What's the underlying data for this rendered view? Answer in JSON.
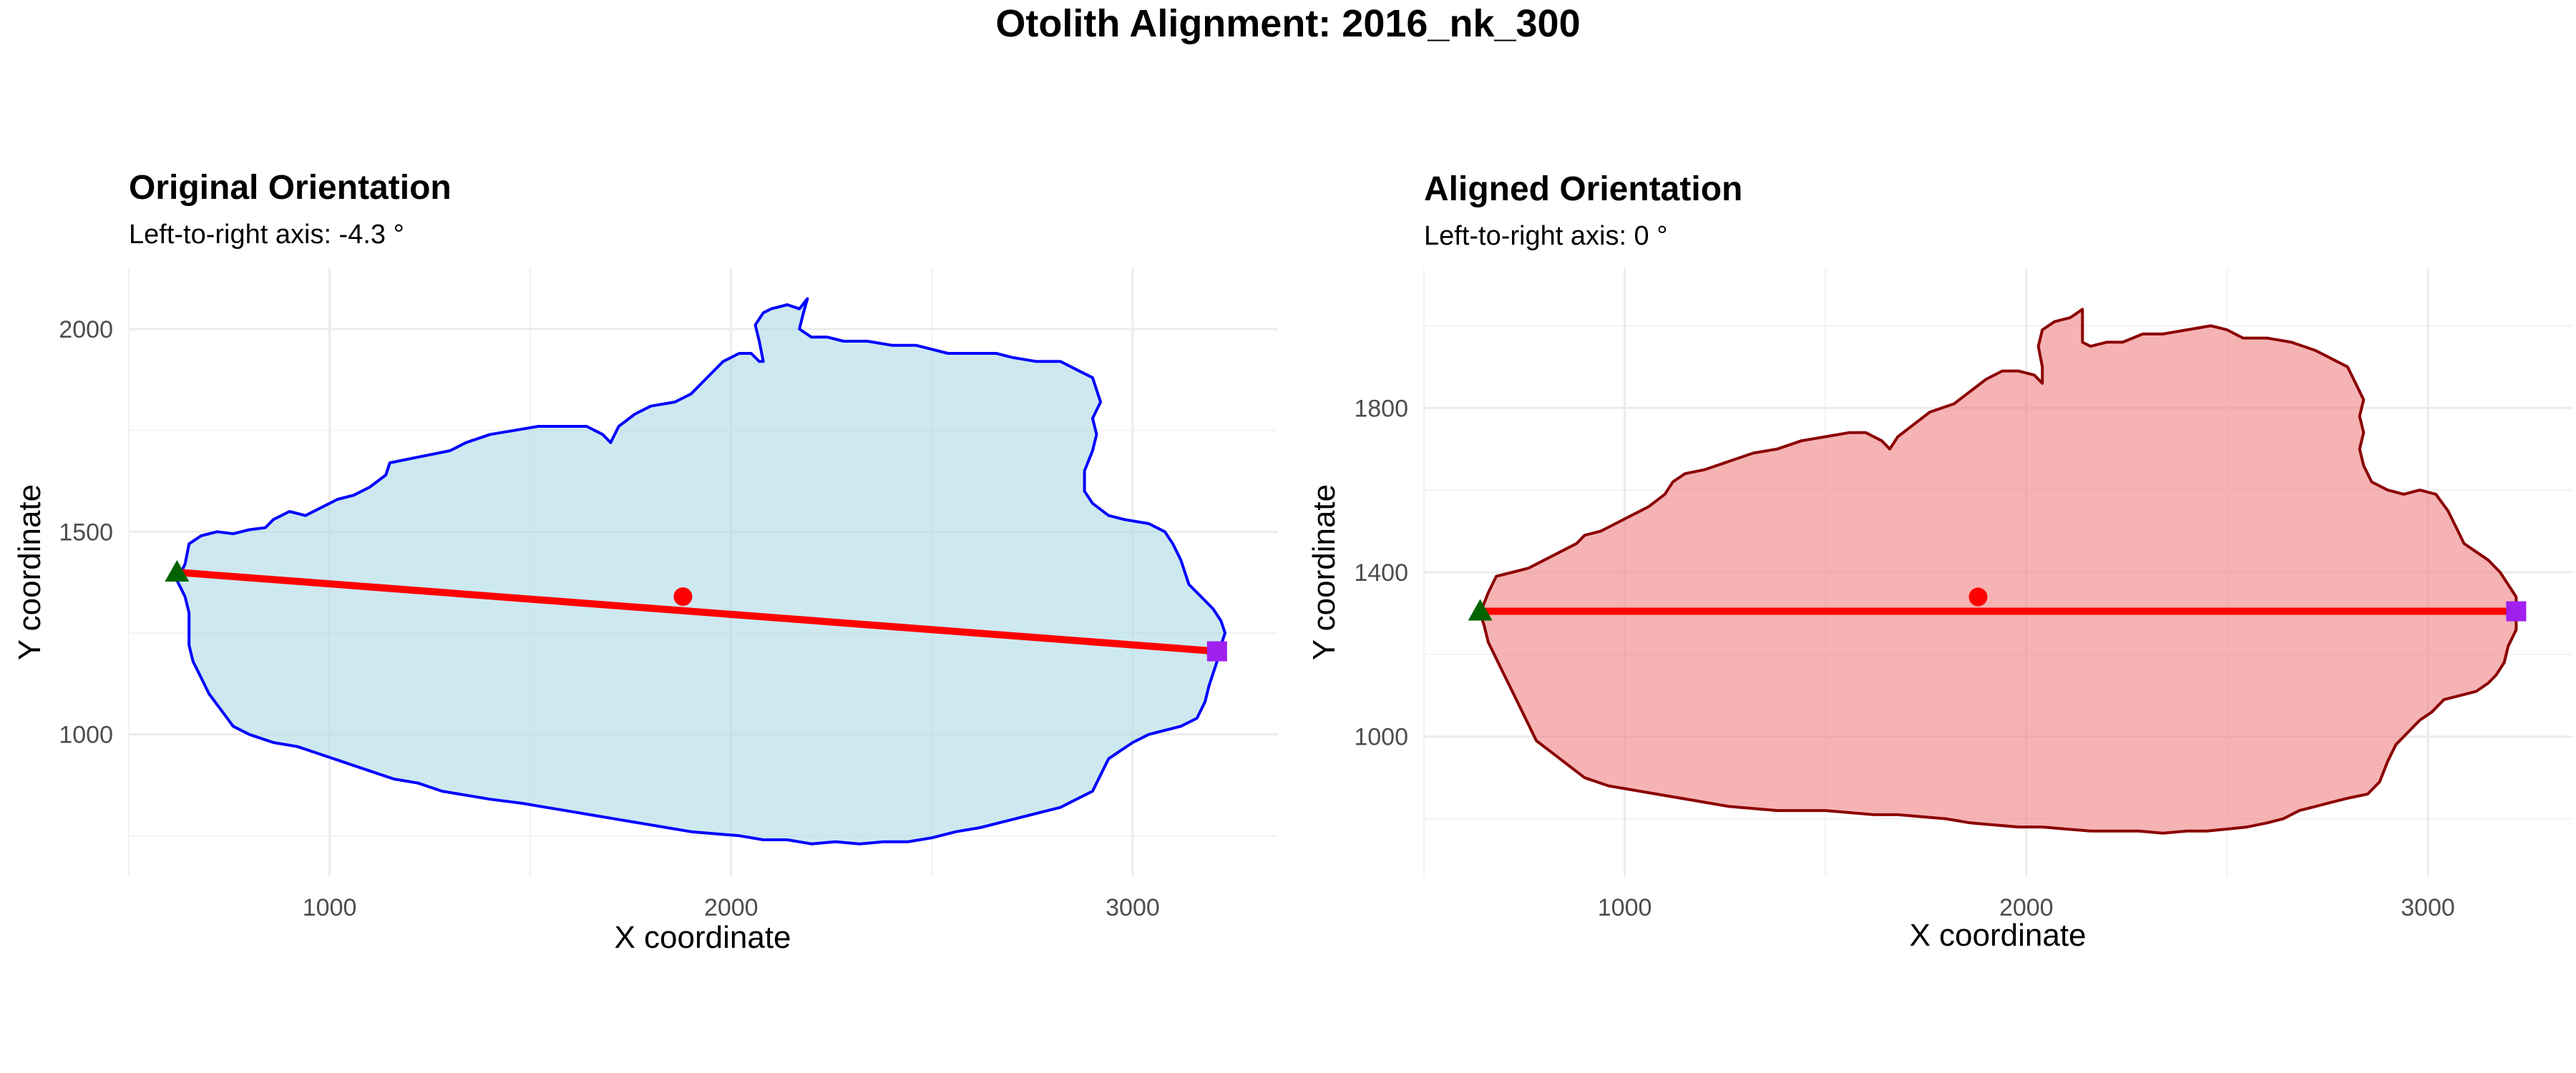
{
  "figure": {
    "title": "Otolith Alignment: 2016_nk_300"
  },
  "chart_data": [
    {
      "type": "scatter",
      "title": "Original Orientation",
      "subtitle": "Left-to-right axis: -4.3 °",
      "xlabel": "X coordinate",
      "ylabel": "Y coordinate",
      "xlim": [
        500,
        3360
      ],
      "ylim": [
        650,
        2150
      ],
      "x_ticks": [
        1000,
        2000,
        3000
      ],
      "y_ticks": [
        1000,
        1500,
        2000
      ],
      "x_tick_labels": [
        "1000",
        "2000",
        "3000"
      ],
      "y_tick_labels": [
        "1000",
        "1500",
        "2000"
      ],
      "grid": true,
      "colors": {
        "fill": "#add8e6",
        "outline": "#0000ff",
        "axis_line": "#ff0000",
        "centroid": "#ff0000",
        "left_point": "#006400",
        "right_point": "#a020f0"
      },
      "outline": [
        [
          620,
          1380
        ],
        [
          640,
          1420
        ],
        [
          650,
          1470
        ],
        [
          680,
          1490
        ],
        [
          720,
          1500
        ],
        [
          760,
          1495
        ],
        [
          800,
          1505
        ],
        [
          840,
          1510
        ],
        [
          860,
          1530
        ],
        [
          880,
          1540
        ],
        [
          900,
          1550
        ],
        [
          940,
          1540
        ],
        [
          980,
          1560
        ],
        [
          1020,
          1580
        ],
        [
          1060,
          1590
        ],
        [
          1100,
          1610
        ],
        [
          1140,
          1640
        ],
        [
          1150,
          1670
        ],
        [
          1200,
          1680
        ],
        [
          1250,
          1690
        ],
        [
          1300,
          1700
        ],
        [
          1340,
          1720
        ],
        [
          1400,
          1740
        ],
        [
          1460,
          1750
        ],
        [
          1520,
          1760
        ],
        [
          1580,
          1760
        ],
        [
          1640,
          1760
        ],
        [
          1680,
          1740
        ],
        [
          1700,
          1720
        ],
        [
          1720,
          1760
        ],
        [
          1760,
          1790
        ],
        [
          1800,
          1810
        ],
        [
          1860,
          1820
        ],
        [
          1900,
          1840
        ],
        [
          1940,
          1880
        ],
        [
          1980,
          1920
        ],
        [
          2020,
          1940
        ],
        [
          2050,
          1940
        ],
        [
          2070,
          1920
        ],
        [
          2080,
          1920
        ],
        [
          2070,
          1970
        ],
        [
          2060,
          2010
        ],
        [
          2080,
          2040
        ],
        [
          2100,
          2050
        ],
        [
          2140,
          2060
        ],
        [
          2170,
          2050
        ],
        [
          2190,
          2075
        ],
        [
          2180,
          2040
        ],
        [
          2170,
          2000
        ],
        [
          2200,
          1980
        ],
        [
          2240,
          1980
        ],
        [
          2280,
          1970
        ],
        [
          2340,
          1970
        ],
        [
          2400,
          1960
        ],
        [
          2460,
          1960
        ],
        [
          2500,
          1950
        ],
        [
          2540,
          1940
        ],
        [
          2600,
          1940
        ],
        [
          2660,
          1940
        ],
        [
          2700,
          1930
        ],
        [
          2760,
          1920
        ],
        [
          2820,
          1920
        ],
        [
          2860,
          1900
        ],
        [
          2900,
          1880
        ],
        [
          2910,
          1850
        ],
        [
          2920,
          1820
        ],
        [
          2900,
          1780
        ],
        [
          2910,
          1740
        ],
        [
          2900,
          1700
        ],
        [
          2880,
          1650
        ],
        [
          2880,
          1600
        ],
        [
          2900,
          1570
        ],
        [
          2940,
          1540
        ],
        [
          2980,
          1530
        ],
        [
          3040,
          1520
        ],
        [
          3080,
          1500
        ],
        [
          3100,
          1470
        ],
        [
          3120,
          1430
        ],
        [
          3130,
          1400
        ],
        [
          3140,
          1370
        ],
        [
          3170,
          1340
        ],
        [
          3200,
          1310
        ],
        [
          3220,
          1280
        ],
        [
          3230,
          1250
        ],
        [
          3220,
          1220
        ],
        [
          3210,
          1180
        ],
        [
          3200,
          1150
        ],
        [
          3190,
          1120
        ],
        [
          3180,
          1080
        ],
        [
          3160,
          1040
        ],
        [
          3120,
          1020
        ],
        [
          3080,
          1010
        ],
        [
          3040,
          1000
        ],
        [
          3000,
          980
        ],
        [
          2970,
          960
        ],
        [
          2940,
          940
        ],
        [
          2920,
          900
        ],
        [
          2900,
          860
        ],
        [
          2860,
          840
        ],
        [
          2820,
          820
        ],
        [
          2780,
          810
        ],
        [
          2740,
          800
        ],
        [
          2700,
          790
        ],
        [
          2660,
          780
        ],
        [
          2620,
          770
        ],
        [
          2560,
          760
        ],
        [
          2500,
          745
        ],
        [
          2440,
          735
        ],
        [
          2380,
          735
        ],
        [
          2320,
          730
        ],
        [
          2260,
          735
        ],
        [
          2200,
          730
        ],
        [
          2140,
          740
        ],
        [
          2080,
          740
        ],
        [
          2020,
          750
        ],
        [
          1960,
          755
        ],
        [
          1900,
          760
        ],
        [
          1840,
          770
        ],
        [
          1780,
          780
        ],
        [
          1720,
          790
        ],
        [
          1660,
          800
        ],
        [
          1600,
          810
        ],
        [
          1540,
          820
        ],
        [
          1480,
          830
        ],
        [
          1400,
          840
        ],
        [
          1340,
          850
        ],
        [
          1280,
          860
        ],
        [
          1220,
          880
        ],
        [
          1160,
          890
        ],
        [
          1100,
          910
        ],
        [
          1040,
          930
        ],
        [
          980,
          950
        ],
        [
          920,
          970
        ],
        [
          860,
          980
        ],
        [
          800,
          1000
        ],
        [
          760,
          1020
        ],
        [
          730,
          1060
        ],
        [
          700,
          1100
        ],
        [
          680,
          1140
        ],
        [
          660,
          1180
        ],
        [
          650,
          1220
        ],
        [
          650,
          1260
        ],
        [
          650,
          1300
        ],
        [
          640,
          1340
        ],
        [
          620,
          1380
        ]
      ],
      "axis_line": {
        "x": [
          620,
          3210
        ],
        "y": [
          1400,
          1205
        ]
      },
      "centroid": {
        "x": 1880,
        "y": 1340
      },
      "left_point": {
        "x": 620,
        "y": 1400
      },
      "right_point": {
        "x": 3210,
        "y": 1205
      }
    },
    {
      "type": "scatter",
      "title": "Aligned Orientation",
      "subtitle": "Left-to-right axis: 0 °",
      "xlabel": "X coordinate",
      "ylabel": "Y coordinate",
      "xlim": [
        500,
        3360
      ],
      "ylim": [
        660,
        2140
      ],
      "x_ticks": [
        1000,
        2000,
        3000
      ],
      "y_ticks": [
        1000,
        1400,
        1800
      ],
      "x_tick_labels": [
        "1000",
        "2000",
        "3000"
      ],
      "y_tick_labels": [
        "1000",
        "1400",
        "1800"
      ],
      "grid": true,
      "colors": {
        "fill": "#f08080",
        "outline": "#8b0000",
        "axis_line": "#ff0000",
        "centroid": "#ff0000",
        "left_point": "#006400",
        "right_point": "#a020f0"
      },
      "outline": [
        [
          640,
          1300
        ],
        [
          660,
          1350
        ],
        [
          680,
          1390
        ],
        [
          720,
          1400
        ],
        [
          760,
          1410
        ],
        [
          800,
          1430
        ],
        [
          840,
          1450
        ],
        [
          880,
          1470
        ],
        [
          900,
          1490
        ],
        [
          940,
          1500
        ],
        [
          980,
          1520
        ],
        [
          1020,
          1540
        ],
        [
          1060,
          1560
        ],
        [
          1100,
          1590
        ],
        [
          1120,
          1620
        ],
        [
          1150,
          1640
        ],
        [
          1200,
          1650
        ],
        [
          1260,
          1670
        ],
        [
          1320,
          1690
        ],
        [
          1380,
          1700
        ],
        [
          1440,
          1720
        ],
        [
          1500,
          1730
        ],
        [
          1560,
          1740
        ],
        [
          1600,
          1740
        ],
        [
          1640,
          1720
        ],
        [
          1660,
          1700
        ],
        [
          1680,
          1730
        ],
        [
          1720,
          1760
        ],
        [
          1760,
          1790
        ],
        [
          1820,
          1810
        ],
        [
          1860,
          1840
        ],
        [
          1900,
          1870
        ],
        [
          1940,
          1890
        ],
        [
          1980,
          1890
        ],
        [
          2020,
          1880
        ],
        [
          2040,
          1860
        ],
        [
          2040,
          1900
        ],
        [
          2030,
          1950
        ],
        [
          2040,
          1990
        ],
        [
          2070,
          2010
        ],
        [
          2110,
          2020
        ],
        [
          2140,
          2040
        ],
        [
          2140,
          2000
        ],
        [
          2140,
          1960
        ],
        [
          2160,
          1950
        ],
        [
          2200,
          1960
        ],
        [
          2240,
          1960
        ],
        [
          2290,
          1980
        ],
        [
          2340,
          1980
        ],
        [
          2400,
          1990
        ],
        [
          2460,
          2000
        ],
        [
          2500,
          1990
        ],
        [
          2540,
          1970
        ],
        [
          2600,
          1970
        ],
        [
          2660,
          1960
        ],
        [
          2720,
          1940
        ],
        [
          2760,
          1920
        ],
        [
          2800,
          1900
        ],
        [
          2820,
          1860
        ],
        [
          2840,
          1820
        ],
        [
          2830,
          1780
        ],
        [
          2840,
          1740
        ],
        [
          2830,
          1700
        ],
        [
          2840,
          1660
        ],
        [
          2860,
          1620
        ],
        [
          2900,
          1600
        ],
        [
          2940,
          1590
        ],
        [
          2980,
          1600
        ],
        [
          3020,
          1590
        ],
        [
          3050,
          1550
        ],
        [
          3070,
          1510
        ],
        [
          3090,
          1470
        ],
        [
          3120,
          1450
        ],
        [
          3150,
          1430
        ],
        [
          3180,
          1400
        ],
        [
          3200,
          1370
        ],
        [
          3220,
          1340
        ],
        [
          3220,
          1300
        ],
        [
          3220,
          1260
        ],
        [
          3200,
          1220
        ],
        [
          3190,
          1180
        ],
        [
          3170,
          1150
        ],
        [
          3150,
          1130
        ],
        [
          3120,
          1110
        ],
        [
          3080,
          1100
        ],
        [
          3040,
          1090
        ],
        [
          3010,
          1060
        ],
        [
          2980,
          1040
        ],
        [
          2950,
          1010
        ],
        [
          2920,
          980
        ],
        [
          2900,
          940
        ],
        [
          2880,
          890
        ],
        [
          2850,
          860
        ],
        [
          2800,
          850
        ],
        [
          2760,
          840
        ],
        [
          2720,
          830
        ],
        [
          2680,
          820
        ],
        [
          2640,
          800
        ],
        [
          2600,
          790
        ],
        [
          2550,
          780
        ],
        [
          2500,
          775
        ],
        [
          2450,
          770
        ],
        [
          2400,
          770
        ],
        [
          2340,
          765
        ],
        [
          2280,
          770
        ],
        [
          2220,
          770
        ],
        [
          2160,
          770
        ],
        [
          2100,
          775
        ],
        [
          2040,
          780
        ],
        [
          1980,
          780
        ],
        [
          1920,
          785
        ],
        [
          1860,
          790
        ],
        [
          1800,
          800
        ],
        [
          1740,
          805
        ],
        [
          1680,
          810
        ],
        [
          1620,
          810
        ],
        [
          1560,
          815
        ],
        [
          1500,
          820
        ],
        [
          1440,
          820
        ],
        [
          1380,
          820
        ],
        [
          1320,
          825
        ],
        [
          1260,
          830
        ],
        [
          1200,
          840
        ],
        [
          1140,
          850
        ],
        [
          1080,
          860
        ],
        [
          1020,
          870
        ],
        [
          960,
          880
        ],
        [
          900,
          900
        ],
        [
          860,
          930
        ],
        [
          820,
          960
        ],
        [
          780,
          990
        ],
        [
          760,
          1030
        ],
        [
          740,
          1070
        ],
        [
          720,
          1110
        ],
        [
          700,
          1150
        ],
        [
          680,
          1190
        ],
        [
          660,
          1230
        ],
        [
          650,
          1270
        ],
        [
          640,
          1300
        ]
      ],
      "axis_line": {
        "x": [
          640,
          3220
        ],
        "y": [
          1305,
          1305
        ]
      },
      "centroid": {
        "x": 1880,
        "y": 1340
      },
      "left_point": {
        "x": 640,
        "y": 1305
      },
      "right_point": {
        "x": 3220,
        "y": 1305
      }
    }
  ]
}
